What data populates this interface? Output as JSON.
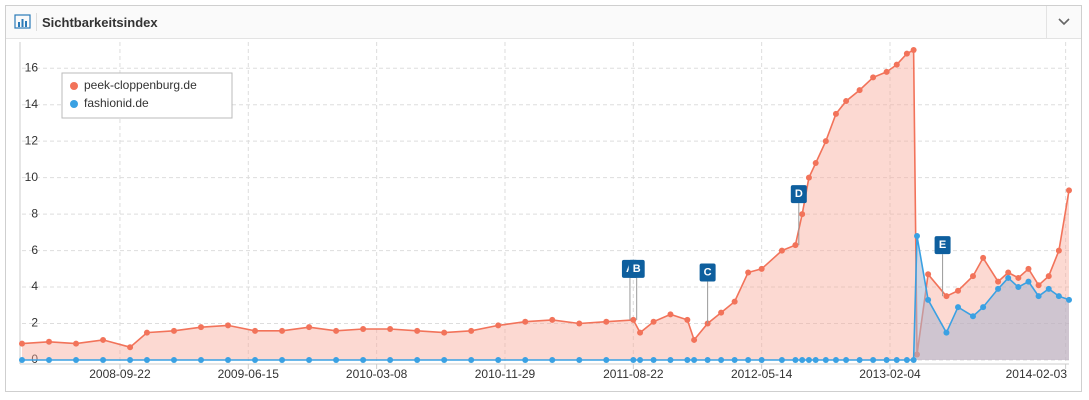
{
  "header": {
    "title": "Sichtbarkeitsindex"
  },
  "chart_data": {
    "type": "area",
    "x": [
      "2008-03-03",
      "2008-04-28",
      "2008-06-23",
      "2008-08-18",
      "2008-10-13",
      "2008-11-17",
      "2009-01-12",
      "2009-03-09",
      "2009-05-04",
      "2009-06-29",
      "2009-08-24",
      "2009-10-19",
      "2009-12-14",
      "2010-02-08",
      "2010-04-05",
      "2010-05-31",
      "2010-07-26",
      "2010-09-20",
      "2010-11-15",
      "2011-01-10",
      "2011-03-07",
      "2011-05-02",
      "2011-06-27",
      "2011-08-22",
      "2011-09-05",
      "2011-10-03",
      "2011-11-07",
      "2011-12-12",
      "2011-12-26",
      "2012-01-23",
      "2012-02-20",
      "2012-03-19",
      "2012-04-16",
      "2012-05-14",
      "2012-06-25",
      "2012-07-23",
      "2012-08-06",
      "2012-08-20",
      "2012-09-03",
      "2012-09-24",
      "2012-10-15",
      "2012-11-05",
      "2012-12-03",
      "2012-12-31",
      "2013-01-28",
      "2013-02-18",
      "2013-03-11",
      "2013-03-25",
      "2013-04-01",
      "2013-04-24",
      "2013-06-01",
      "2013-06-25",
      "2013-07-26",
      "2013-08-16",
      "2013-09-16",
      "2013-10-07",
      "2013-10-28",
      "2013-11-18",
      "2013-12-09",
      "2013-12-30",
      "2014-01-20",
      "2014-02-10"
    ],
    "series": [
      {
        "name": "peek-cloppenburg.de",
        "color": "#f2735a",
        "fill": "rgba(248,170,155,0.45)",
        "values": [
          0.9,
          1.0,
          0.9,
          1.1,
          0.7,
          1.5,
          1.6,
          1.8,
          1.9,
          1.6,
          1.6,
          1.8,
          1.6,
          1.7,
          1.7,
          1.6,
          1.5,
          1.6,
          1.9,
          2.1,
          2.2,
          2.0,
          2.1,
          2.2,
          1.5,
          2.1,
          2.5,
          2.2,
          1.1,
          2.0,
          2.6,
          3.2,
          4.8,
          5.0,
          6.0,
          6.3,
          8.0,
          10.0,
          10.8,
          12.0,
          13.5,
          14.2,
          14.8,
          15.5,
          15.8,
          16.2,
          16.8,
          17.0,
          0.3,
          4.7,
          3.5,
          3.8,
          4.6,
          5.6,
          4.3,
          4.8,
          4.5,
          5.0,
          4.1,
          4.6,
          6.0,
          9.3
        ]
      },
      {
        "name": "fashionid.de",
        "color": "#3aa1e3",
        "fill": "rgba(170,180,205,0.55)",
        "values": [
          0,
          0,
          0,
          0,
          0,
          0,
          0,
          0,
          0,
          0,
          0,
          0,
          0,
          0,
          0,
          0,
          0,
          0,
          0,
          0,
          0,
          0,
          0,
          0,
          0,
          0,
          0,
          0,
          0,
          0,
          0,
          0,
          0,
          0,
          0,
          0,
          0,
          0,
          0,
          0,
          0,
          0,
          0,
          0,
          0,
          0,
          0,
          0,
          6.8,
          3.3,
          1.5,
          2.9,
          2.4,
          2.9,
          3.9,
          4.5,
          4.0,
          4.3,
          3.5,
          3.9,
          3.5,
          3.3
        ]
      }
    ],
    "xlim": [
      "2008-03-03",
      "2014-02-10"
    ],
    "xticks": [
      "2008-09-22",
      "2009-06-15",
      "2010-03-08",
      "2010-11-29",
      "2011-08-22",
      "2012-05-14",
      "2013-02-04",
      "2014-02-03"
    ],
    "ylim": [
      0,
      17
    ],
    "yticks": [
      0,
      2,
      4,
      6,
      8,
      10,
      12,
      14,
      16
    ],
    "grid": true,
    "legend": "top-left",
    "events": [
      {
        "x": "2011-08-15",
        "label": "A"
      },
      {
        "x": "2011-08-29",
        "label": "B"
      },
      {
        "x": "2012-01-23",
        "label": "C"
      },
      {
        "x": "2012-07-30",
        "label": "D"
      },
      {
        "x": "2013-05-24",
        "label": "E"
      }
    ]
  }
}
